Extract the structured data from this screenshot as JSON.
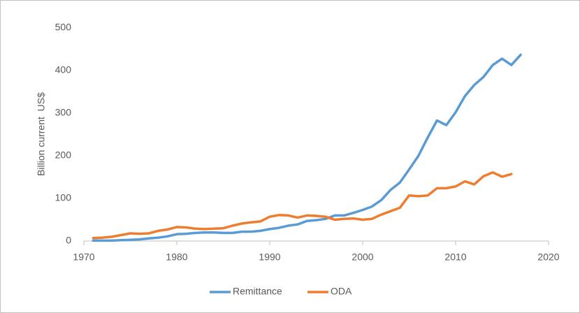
{
  "chart_data": {
    "type": "line",
    "y_label": "Billion current  US$",
    "xlim": [
      1970,
      2020
    ],
    "xticks": [
      1970,
      1980,
      1990,
      2000,
      2010,
      2020
    ],
    "ylim": [
      0,
      500
    ],
    "yticks": [
      0,
      100,
      200,
      300,
      400,
      500
    ],
    "grid": false,
    "legend": "bottom",
    "series": [
      {
        "name": "Remittance",
        "color": "#5b9bd5",
        "x": [
          1971,
          1972,
          1973,
          1974,
          1975,
          1976,
          1977,
          1978,
          1979,
          1980,
          1981,
          1982,
          1983,
          1984,
          1985,
          1986,
          1987,
          1988,
          1989,
          1990,
          1991,
          1992,
          1993,
          1994,
          1995,
          1996,
          1997,
          1998,
          1999,
          2000,
          2001,
          2002,
          2003,
          2004,
          2005,
          2006,
          2007,
          2008,
          2009,
          2010,
          2011,
          2012,
          2013,
          2014,
          2015,
          2016,
          2017
        ],
        "values": [
          1,
          1,
          1,
          2,
          3,
          4,
          6,
          8,
          11,
          16,
          17,
          19,
          20,
          20,
          19,
          19,
          22,
          22,
          24,
          28,
          31,
          36,
          39,
          47,
          49,
          52,
          60,
          60,
          66,
          73,
          81,
          96,
          120,
          137,
          168,
          200,
          243,
          283,
          272,
          302,
          340,
          366,
          385,
          413,
          428,
          413,
          437
        ]
      },
      {
        "name": "ODA",
        "color": "#ed7d31",
        "x": [
          1971,
          1972,
          1973,
          1974,
          1975,
          1976,
          1977,
          1978,
          1979,
          1980,
          1981,
          1982,
          1983,
          1984,
          1985,
          1986,
          1987,
          1988,
          1989,
          1990,
          1991,
          1992,
          1993,
          1994,
          1995,
          1996,
          1997,
          1998,
          1999,
          2000,
          2001,
          2002,
          2003,
          2004,
          2005,
          2006,
          2007,
          2008,
          2009,
          2010,
          2011,
          2012,
          2013,
          2014,
          2015,
          2016
        ],
        "values": [
          7,
          8,
          10,
          14,
          18,
          17,
          18,
          24,
          27,
          33,
          32,
          29,
          28,
          29,
          30,
          36,
          41,
          44,
          46,
          57,
          61,
          60,
          55,
          60,
          59,
          57,
          50,
          52,
          53,
          50,
          52,
          62,
          70,
          78,
          107,
          105,
          107,
          124,
          124,
          128,
          140,
          133,
          152,
          161,
          151,
          157
        ]
      }
    ]
  }
}
